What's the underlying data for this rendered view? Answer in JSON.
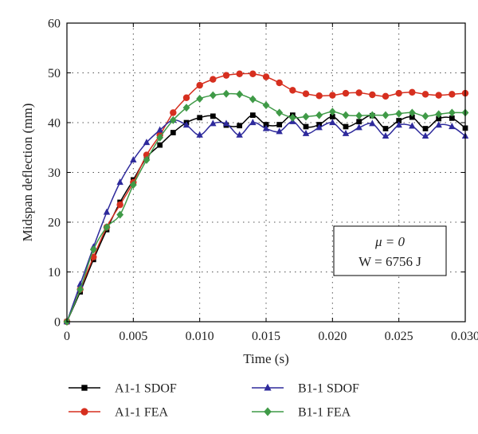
{
  "chart_data": {
    "type": "line",
    "title": "",
    "xlabel": "Time (s)",
    "ylabel": "Midspan deflection (mm)",
    "xlim": [
      0,
      0.03
    ],
    "ylim": [
      0,
      60
    ],
    "xticks": [
      0,
      0.005,
      0.01,
      0.015,
      0.02,
      0.025,
      0.03
    ],
    "xtick_labels": [
      "0",
      "0.005",
      "0.010",
      "0.015",
      "0.020",
      "0.025",
      "0.030"
    ],
    "yticks": [
      0,
      10,
      20,
      30,
      40,
      50,
      60
    ],
    "ytick_labels": [
      "0",
      "10",
      "20",
      "30",
      "40",
      "50",
      "60"
    ],
    "grid": true,
    "legend_position": "bottom",
    "annotation": {
      "line1": "μ = 0",
      "line2": "W = 6756 J"
    },
    "series": [
      {
        "name": "A1-1 SDOF",
        "color": "#000000",
        "marker": "square",
        "x": [
          0,
          0.001,
          0.002,
          0.003,
          0.004,
          0.005,
          0.006,
          0.007,
          0.008,
          0.009,
          0.01,
          0.011,
          0.012,
          0.013,
          0.014,
          0.015,
          0.016,
          0.017,
          0.018,
          0.019,
          0.02,
          0.021,
          0.022,
          0.023,
          0.024,
          0.025,
          0.026,
          0.027,
          0.028,
          0.029,
          0.03
        ],
        "y": [
          0,
          6,
          12.5,
          18.5,
          24,
          28.5,
          33,
          35.5,
          38,
          40,
          41,
          41.3,
          39.5,
          39.4,
          41.5,
          39.6,
          39.6,
          41.5,
          39.2,
          39.6,
          41.2,
          39.2,
          40.2,
          41.4,
          38.8,
          40.4,
          41.1,
          38.8,
          40.8,
          40.9,
          38.9
        ]
      },
      {
        "name": "A1-1 FEA",
        "color": "#d62f1f",
        "marker": "circle",
        "x": [
          0,
          0.001,
          0.002,
          0.003,
          0.004,
          0.005,
          0.006,
          0.007,
          0.008,
          0.009,
          0.01,
          0.011,
          0.012,
          0.013,
          0.014,
          0.015,
          0.016,
          0.017,
          0.018,
          0.019,
          0.02,
          0.021,
          0.022,
          0.023,
          0.024,
          0.025,
          0.026,
          0.027,
          0.028,
          0.029,
          0.03
        ],
        "y": [
          0,
          6.5,
          13,
          19,
          23.5,
          28,
          33.5,
          37.5,
          42,
          45,
          47.5,
          48.7,
          49.5,
          49.8,
          49.8,
          49.2,
          48,
          46.5,
          45.8,
          45.4,
          45.5,
          45.9,
          46,
          45.6,
          45.3,
          45.9,
          46.1,
          45.7,
          45.5,
          45.7,
          45.9
        ]
      },
      {
        "name": "B1-1 SDOF",
        "color": "#2e2a9c",
        "marker": "triangle",
        "x": [
          0,
          0.001,
          0.002,
          0.003,
          0.004,
          0.005,
          0.006,
          0.007,
          0.008,
          0.009,
          0.01,
          0.011,
          0.012,
          0.013,
          0.014,
          0.015,
          0.016,
          0.017,
          0.018,
          0.019,
          0.02,
          0.021,
          0.022,
          0.023,
          0.024,
          0.025,
          0.026,
          0.027,
          0.028,
          0.029,
          0.03
        ],
        "y": [
          0,
          7.5,
          15,
          22,
          28,
          32.5,
          36,
          38.5,
          40.5,
          39.5,
          37.5,
          39.8,
          39.8,
          37.5,
          40,
          38.8,
          38.2,
          40.2,
          37.8,
          39,
          40,
          37.8,
          39,
          39.8,
          37.3,
          39.5,
          39.3,
          37.3,
          39.5,
          39.2,
          37.3
        ]
      },
      {
        "name": "B1-1 FEA",
        "color": "#3f9a47",
        "marker": "diamond",
        "x": [
          0,
          0.001,
          0.002,
          0.003,
          0.004,
          0.005,
          0.006,
          0.007,
          0.008,
          0.009,
          0.01,
          0.011,
          0.012,
          0.013,
          0.014,
          0.015,
          0.016,
          0.017,
          0.018,
          0.019,
          0.02,
          0.021,
          0.022,
          0.023,
          0.024,
          0.025,
          0.026,
          0.027,
          0.028,
          0.029,
          0.03
        ],
        "y": [
          0,
          6.5,
          14.5,
          19,
          21.5,
          27.5,
          32.5,
          37,
          40.5,
          43,
          44.8,
          45.5,
          45.8,
          45.7,
          44.7,
          43.5,
          42,
          41,
          41.2,
          41.5,
          42.2,
          41.5,
          41.4,
          41.5,
          41.5,
          41.8,
          42,
          41.3,
          41.7,
          42,
          42
        ]
      }
    ]
  }
}
